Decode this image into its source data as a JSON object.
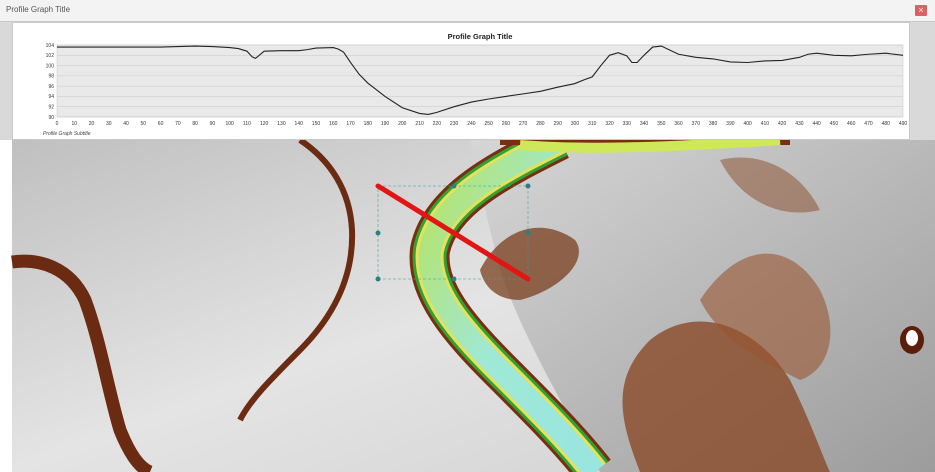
{
  "window": {
    "title": "Profile Graph Title",
    "close_glyph": "×"
  },
  "chart_data": {
    "type": "line",
    "title": "Profile Graph Title",
    "subtitle": "Profile Graph Subtitle",
    "xlabel": "",
    "ylabel": "",
    "xlim": [
      0,
      490
    ],
    "ylim": [
      90,
      104
    ],
    "x_ticks": [
      0,
      10,
      20,
      30,
      40,
      50,
      60,
      70,
      80,
      90,
      100,
      110,
      120,
      130,
      140,
      150,
      160,
      170,
      180,
      190,
      200,
      210,
      220,
      230,
      240,
      250,
      260,
      270,
      280,
      290,
      300,
      310,
      320,
      330,
      340,
      350,
      360,
      370,
      380,
      390,
      400,
      410,
      420,
      430,
      440,
      450,
      460,
      470,
      480,
      490
    ],
    "y_ticks": [
      90,
      92,
      94,
      96,
      98,
      100,
      102,
      104
    ],
    "grid": true,
    "line_color": "#222222",
    "series": [
      {
        "x": [
          0,
          20,
          40,
          60,
          70,
          80,
          90,
          100,
          105,
          110,
          113,
          115,
          120,
          130,
          140,
          145,
          150,
          160,
          163,
          166,
          170,
          175,
          180,
          190,
          200,
          210,
          215,
          220,
          230,
          240,
          250,
          260,
          270,
          280,
          290,
          300,
          305,
          310,
          315,
          320,
          325,
          330,
          333,
          336,
          340,
          345,
          350,
          360,
          370,
          380,
          390,
          400,
          410,
          420,
          430,
          435,
          440,
          450,
          460,
          470,
          480,
          490
        ],
        "y": [
          103.6,
          103.6,
          103.6,
          103.6,
          103.7,
          103.8,
          103.7,
          103.5,
          103.3,
          102.8,
          101.7,
          101.4,
          102.8,
          102.9,
          102.9,
          103.1,
          103.4,
          103.5,
          103.2,
          102.6,
          100.6,
          98.3,
          96.6,
          94.0,
          91.8,
          90.7,
          90.5,
          90.9,
          92.0,
          92.9,
          93.5,
          94.0,
          94.5,
          95.0,
          95.8,
          96.5,
          97.2,
          97.8,
          100.0,
          102.0,
          102.5,
          101.9,
          100.6,
          100.6,
          102.0,
          103.6,
          103.8,
          102.2,
          101.6,
          101.3,
          100.7,
          100.6,
          100.9,
          101.0,
          101.6,
          102.2,
          102.4,
          102.0,
          101.9,
          102.2,
          102.4,
          102.0
        ]
      }
    ]
  },
  "profile_line": {
    "color": "#e31414"
  }
}
